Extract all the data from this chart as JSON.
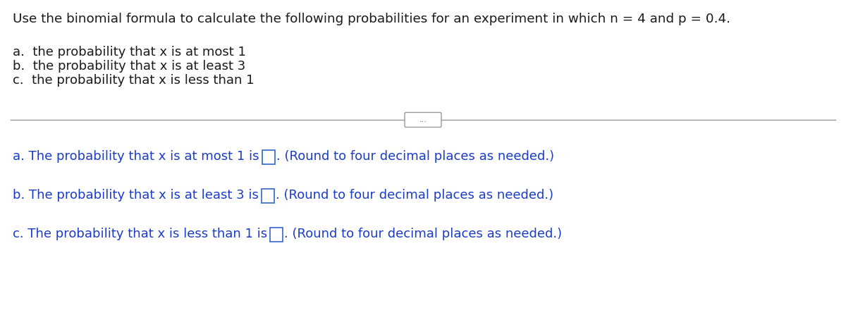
{
  "background_color": "#ffffff",
  "title_text": "Use the binomial formula to calculate the following probabilities for an experiment in which n = 4 and p = 0.4.",
  "bullet_a": "a.  the probability that x is at most 1",
  "bullet_b": "b.  the probability that x is at least 3",
  "bullet_c": "c.  the probability that x is less than 1",
  "answer_a_pre": "a. The probability that x is at most 1 is",
  "answer_b_pre": "b. The probability that x is at least 3 is",
  "answer_c_pre": "c. The probability that x is less than 1 is",
  "round_note": "(Round to four decimal places as needed.)",
  "text_color_black": "#1a1a1a",
  "text_color_blue": "#1a3cc8",
  "divider_color": "#999999",
  "box_edge_color": "#3366cc",
  "dots_color": "#555555",
  "title_fontsize": 13.2,
  "body_fontsize": 13.0,
  "answer_fontsize": 13.0,
  "figwidth": 12.0,
  "figheight": 4.47,
  "dpi": 100
}
